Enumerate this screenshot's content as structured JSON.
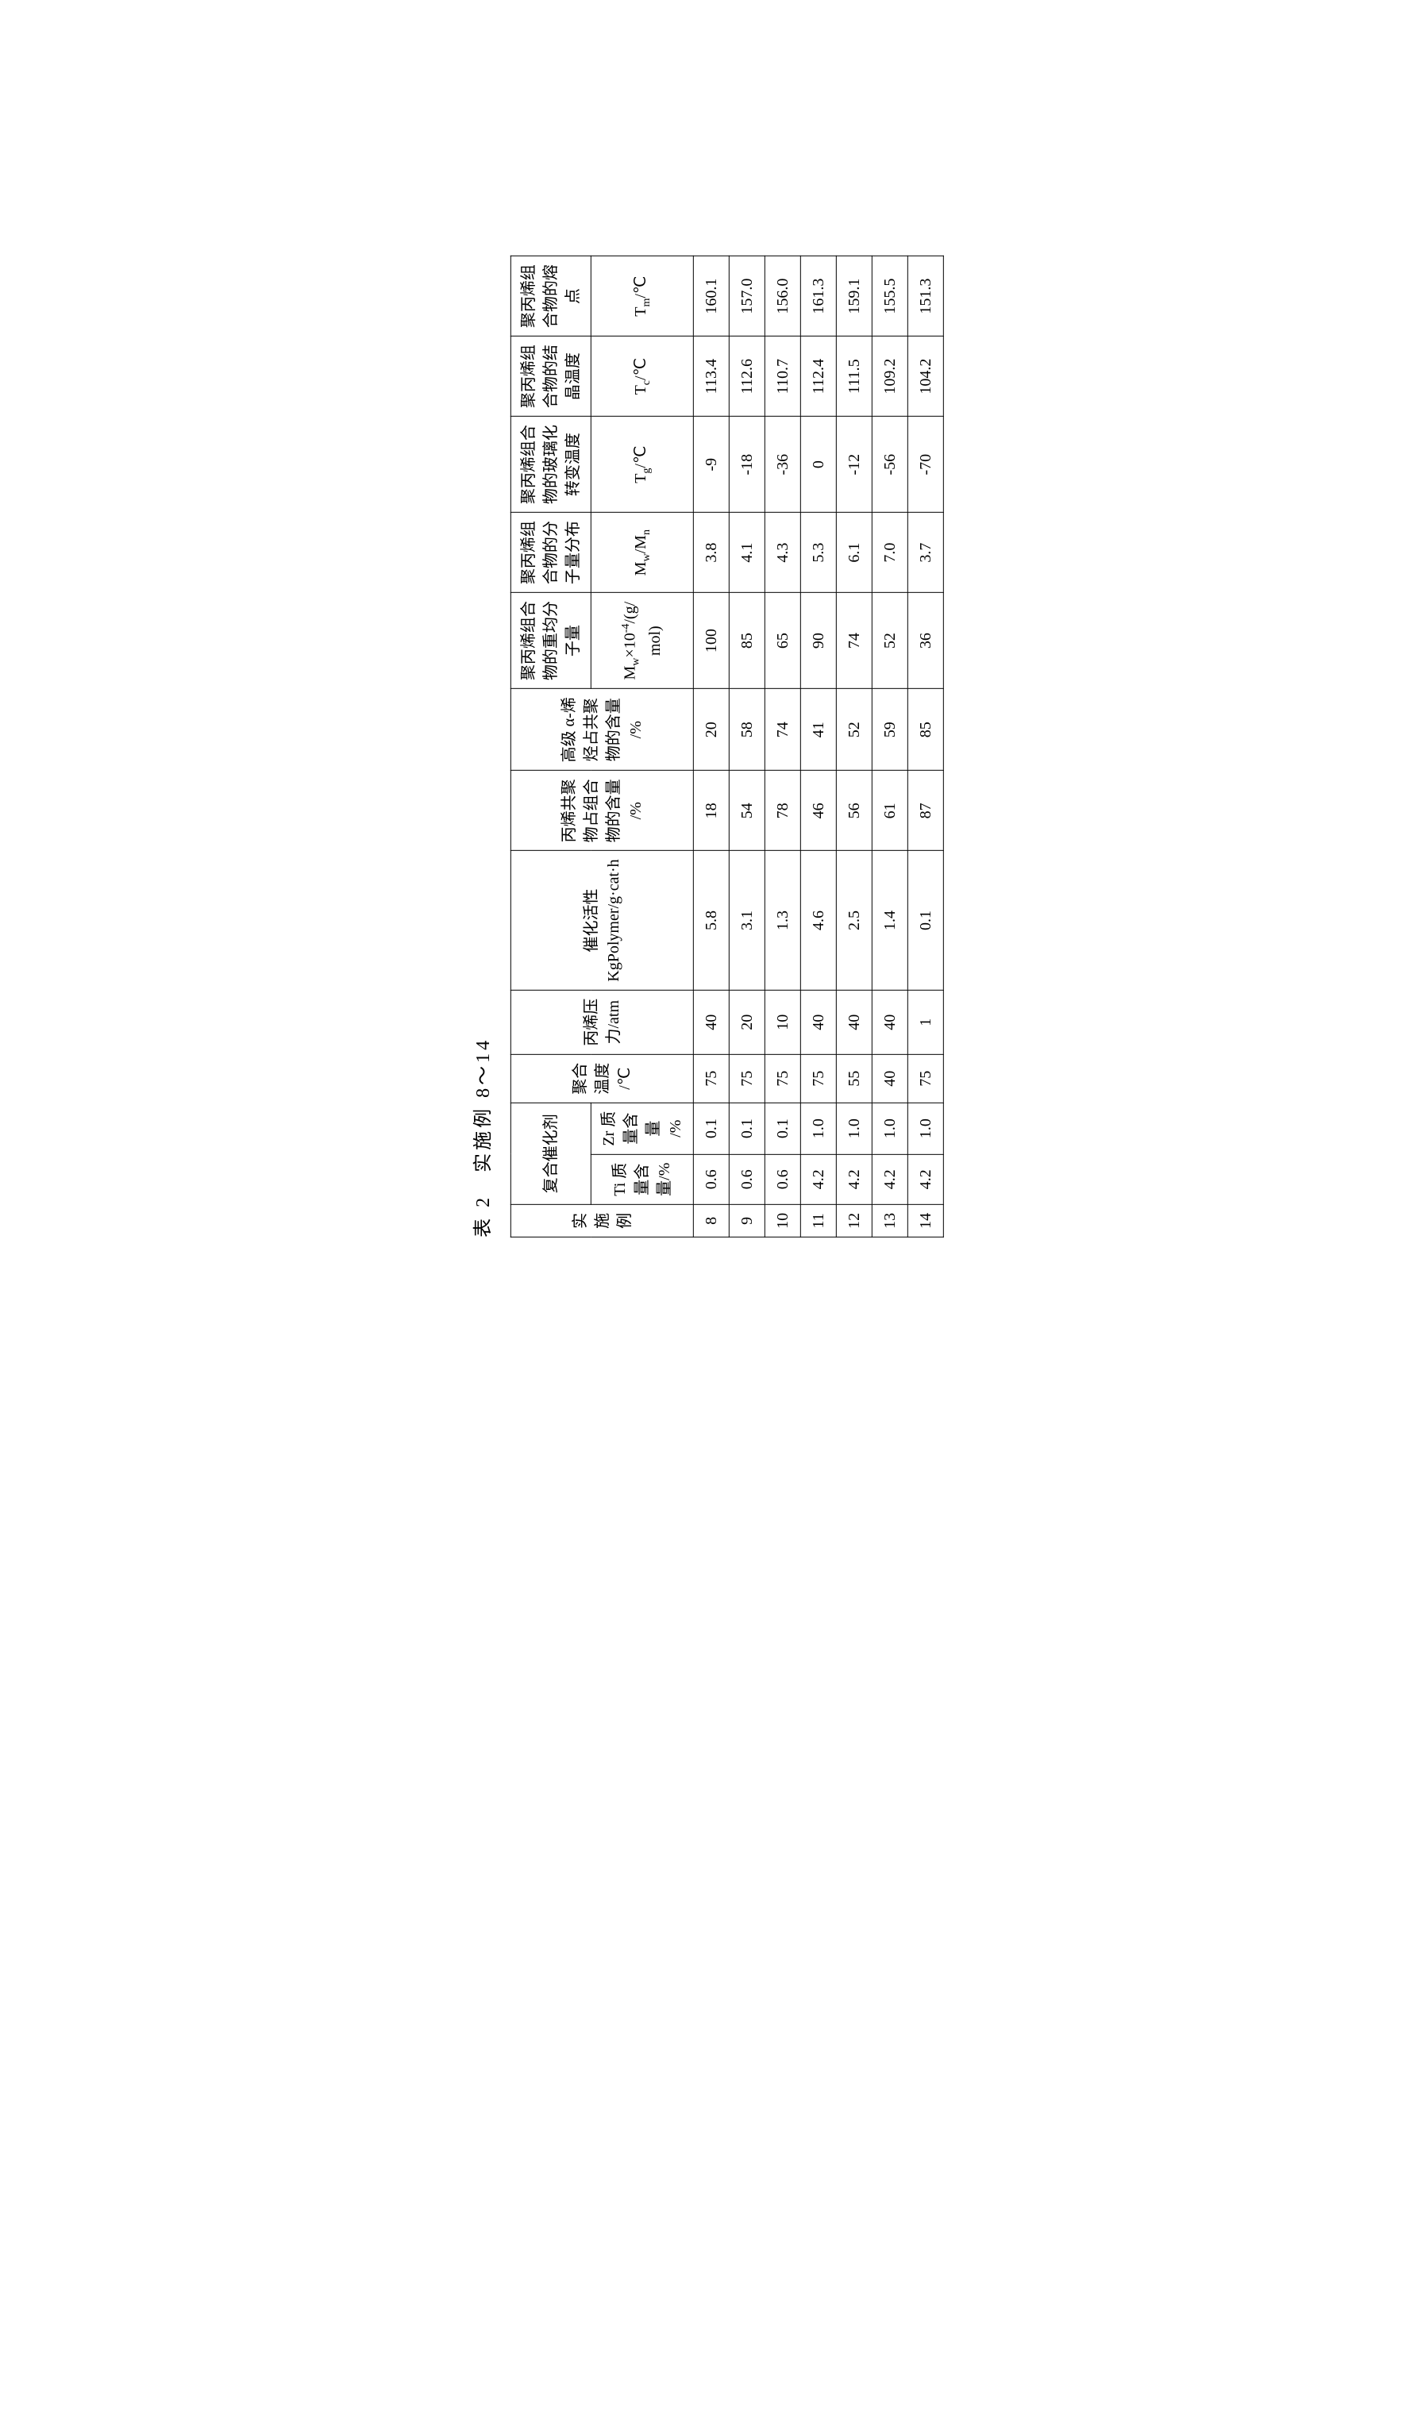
{
  "caption": "表 2　实施例 8～14",
  "headers": {
    "col_exp": "实\n施\n例",
    "col_catalyst": "复合催化剂",
    "col_ti": "Ti 质\n量含\n量/%",
    "col_zr": "Zr 质\n量含\n量\n/%",
    "col_temp": "聚合\n温度\n/℃",
    "col_pressure": "丙烯压\n力/atm",
    "col_activity": "催化活性\nKgPolymer/g·cat·h",
    "col_propylene_copolymer": "丙烯共聚\n物占组合\n物的含量\n/%",
    "col_alpha_olefin": "高级 α-烯\n烃占共聚\n物的含量\n/%",
    "col_mw_label1": "聚丙烯组合\n物的重均分\n子量",
    "col_mw_unit": "Mw×10⁻⁴/(g/\nmol)",
    "col_mwmn_label1": "聚丙烯组\n合物的分\n子量分布",
    "col_mwmn_unit": "Mw/Mn",
    "col_tg_label1": "聚丙烯组合\n物的玻璃化\n转变温度",
    "col_tg_unit": "Tg/℃",
    "col_tc_label1": "聚丙烯组\n合物的结\n晶温度",
    "col_tc_unit": "Tc/℃",
    "col_tm_label1": "聚丙烯组\n合物的熔\n点",
    "col_tm_unit": "Tm/℃"
  },
  "rows": [
    {
      "exp": "8",
      "ti": "0.6",
      "zr": "0.1",
      "temp": "75",
      "pressure": "40",
      "activity": "5.8",
      "pcp": "18",
      "alpha": "20",
      "mw": "100",
      "mwmn": "3.8",
      "tg": "-9",
      "tc": "113.4",
      "tm": "160.1"
    },
    {
      "exp": "9",
      "ti": "0.6",
      "zr": "0.1",
      "temp": "75",
      "pressure": "20",
      "activity": "3.1",
      "pcp": "54",
      "alpha": "58",
      "mw": "85",
      "mwmn": "4.1",
      "tg": "-18",
      "tc": "112.6",
      "tm": "157.0"
    },
    {
      "exp": "10",
      "ti": "0.6",
      "zr": "0.1",
      "temp": "75",
      "pressure": "10",
      "activity": "1.3",
      "pcp": "78",
      "alpha": "74",
      "mw": "65",
      "mwmn": "4.3",
      "tg": "-36",
      "tc": "110.7",
      "tm": "156.0"
    },
    {
      "exp": "11",
      "ti": "4.2",
      "zr": "1.0",
      "temp": "75",
      "pressure": "40",
      "activity": "4.6",
      "pcp": "46",
      "alpha": "41",
      "mw": "90",
      "mwmn": "5.3",
      "tg": "0",
      "tc": "112.4",
      "tm": "161.3"
    },
    {
      "exp": "12",
      "ti": "4.2",
      "zr": "1.0",
      "temp": "55",
      "pressure": "40",
      "activity": "2.5",
      "pcp": "56",
      "alpha": "52",
      "mw": "74",
      "mwmn": "6.1",
      "tg": "-12",
      "tc": "111.5",
      "tm": "159.1"
    },
    {
      "exp": "13",
      "ti": "4.2",
      "zr": "1.0",
      "temp": "40",
      "pressure": "40",
      "activity": "1.4",
      "pcp": "61",
      "alpha": "59",
      "mw": "52",
      "mwmn": "7.0",
      "tg": "-56",
      "tc": "109.2",
      "tm": "155.5"
    },
    {
      "exp": "14",
      "ti": "4.2",
      "zr": "1.0",
      "temp": "75",
      "pressure": "1",
      "activity": "0.1",
      "pcp": "87",
      "alpha": "85",
      "mw": "36",
      "mwmn": "3.7",
      "tg": "-70",
      "tc": "104.2",
      "tm": "151.3"
    }
  ],
  "styles": {
    "background_color": "#ffffff",
    "text_color": "#000000",
    "border_color": "#000000",
    "font_family": "SimSun",
    "caption_fontsize": 24,
    "cell_fontsize": 20
  }
}
